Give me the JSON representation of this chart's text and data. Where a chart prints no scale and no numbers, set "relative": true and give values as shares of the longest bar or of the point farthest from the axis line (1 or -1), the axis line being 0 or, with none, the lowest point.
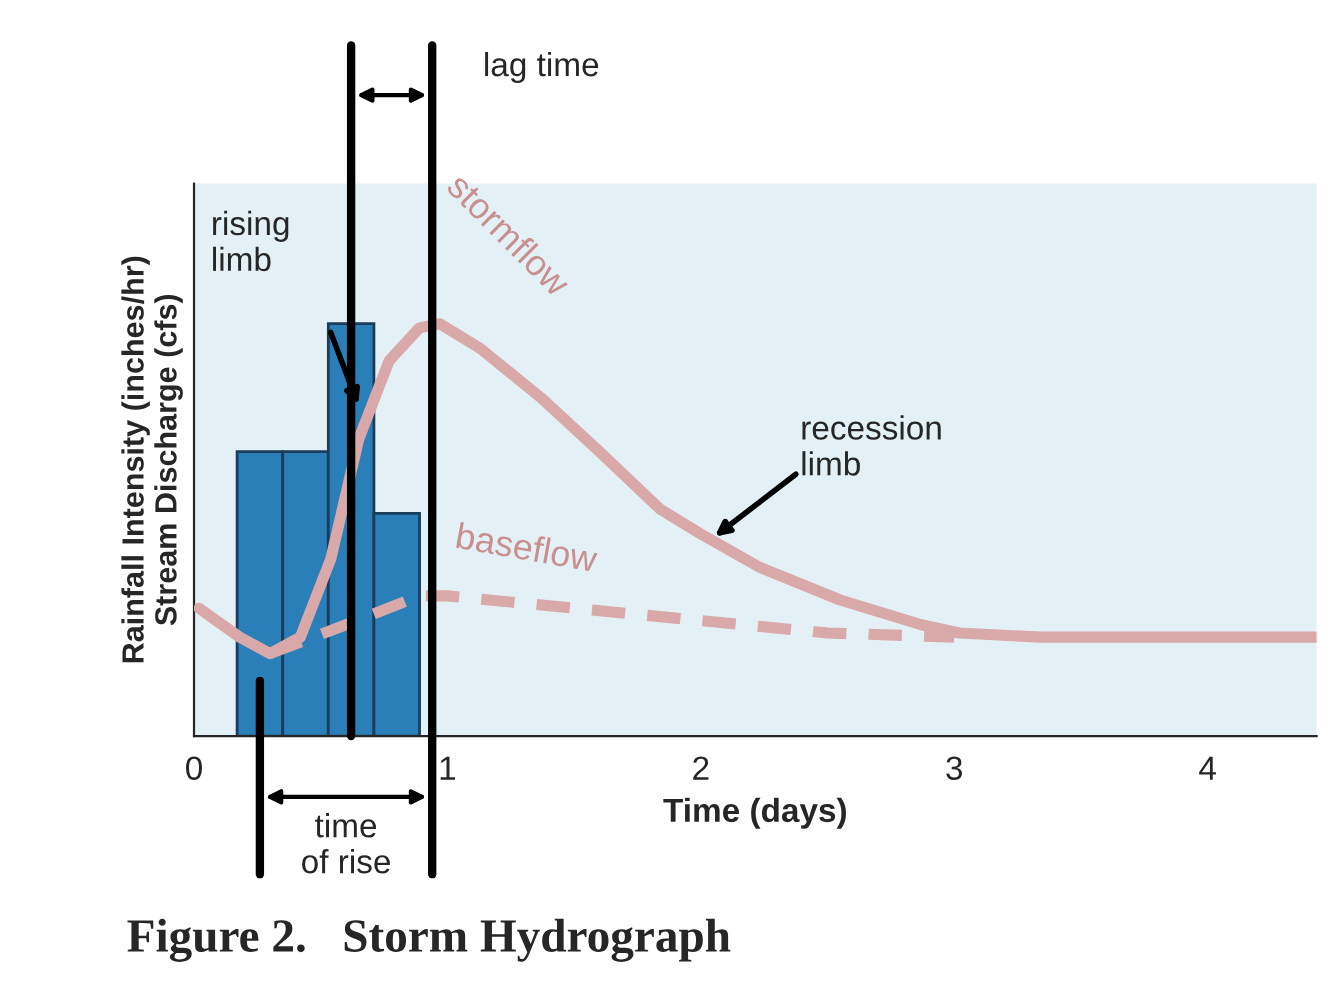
{
  "chart_data": {
    "type": "line",
    "relative": true,
    "title": "Figure 2.   Storm Hydrograph",
    "xlabel": "Time (days)",
    "ylabel": "Rainfall Intensity (inches/hr)\nStream Discharge (cfs)",
    "xlim": [
      0,
      4.43
    ],
    "xticks": [
      0,
      1,
      2,
      3,
      4
    ],
    "grid": false,
    "series": [
      {
        "type": "bar",
        "color": "#2a7fb8",
        "x": [
          0.26,
          0.44,
          0.62,
          0.8
        ],
        "values": [
          0.69,
          0.69,
          1.0,
          0.54
        ]
      },
      {
        "name": "stormflow",
        "color": "#d9a8a8",
        "line_style": "solid",
        "x": [
          0.02,
          0.18,
          0.3,
          0.42,
          0.54,
          0.65,
          0.77,
          0.89,
          0.97,
          1.13,
          1.37,
          1.6,
          1.84,
          2.0,
          2.23,
          2.55,
          2.87,
          3.02,
          3.34,
          3.97,
          4.43
        ],
        "values": [
          0.31,
          0.24,
          0.2,
          0.24,
          0.43,
          0.72,
          0.91,
          0.99,
          1.0,
          0.94,
          0.82,
          0.69,
          0.55,
          0.49,
          0.41,
          0.33,
          0.27,
          0.25,
          0.24,
          0.24,
          0.24
        ]
      },
      {
        "name": "baseflow",
        "color": "#d9a8a8",
        "line_style": "dashed",
        "x": [
          0.3,
          0.6,
          0.89,
          1.0,
          1.5,
          2.0,
          2.5,
          3.0
        ],
        "values": [
          0.2,
          0.27,
          0.34,
          0.34,
          0.31,
          0.28,
          0.25,
          0.24
        ]
      }
    ],
    "ref_lines": [
      {
        "axis": "x",
        "value": 0.62,
        "color": "#000000"
      },
      {
        "axis": "x",
        "value": 0.94,
        "color": "#000000"
      },
      {
        "axis": "x",
        "value": 0.26,
        "color": "#000000"
      }
    ],
    "annotations": [
      "lag time",
      "rising\nlimb",
      "recession\nlimb",
      "time\nof rise"
    ]
  }
}
